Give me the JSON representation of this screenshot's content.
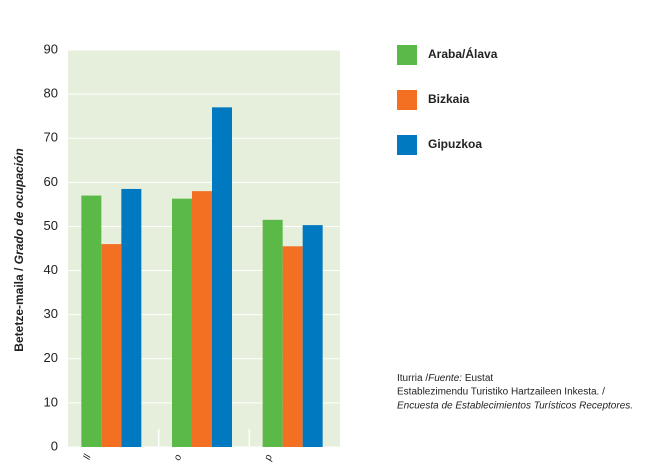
{
  "chart_data": {
    "type": "bar",
    "y_label": [
      "Betetze-maila / ",
      "Grado de ocupación"
    ],
    "categories": [
      "ll",
      "o",
      "p"
    ],
    "series": [
      {
        "name": "Araba/Álava",
        "color": "#5bb947",
        "values": [
          57,
          56.3,
          51.5
        ]
      },
      {
        "name": "Bizkaia",
        "color": "#f36f21",
        "values": [
          46,
          58,
          45.5
        ]
      },
      {
        "name": "Gipuzkoa",
        "color": "#0079c1",
        "values": [
          58.5,
          77,
          50.3
        ]
      }
    ],
    "ylim": [
      0,
      90
    ],
    "yticks": [
      0,
      10,
      20,
      30,
      40,
      50,
      60,
      70,
      80,
      90
    ],
    "grid": true,
    "source": [
      "Iturria /",
      "Fuente:",
      " Eustat",
      "Establezimendu Turistiko Hartzaileen Inkesta. /",
      "Encuesta de Establecimientos Turísticos Receptores."
    ]
  }
}
